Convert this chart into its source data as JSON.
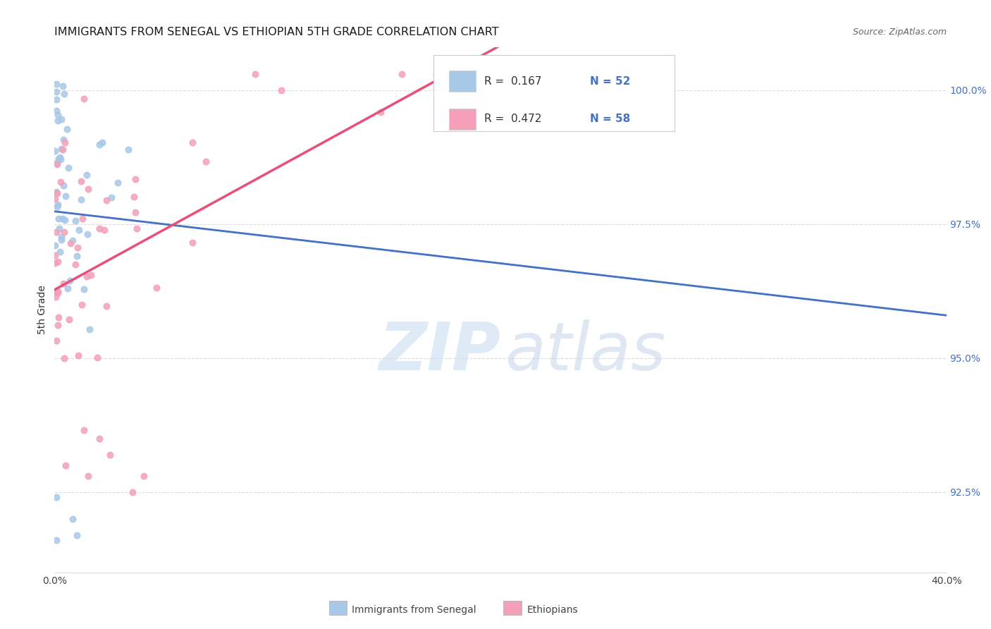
{
  "title": "IMMIGRANTS FROM SENEGAL VS ETHIOPIAN 5TH GRADE CORRELATION CHART",
  "source": "Source: ZipAtlas.com",
  "ylabel_label": "5th Grade",
  "ytick_labels": [
    "100.0%",
    "97.5%",
    "95.0%",
    "92.5%"
  ],
  "ytick_values": [
    1.0,
    0.975,
    0.95,
    0.925
  ],
  "xmin": 0.0,
  "xmax": 0.4,
  "ymin": 0.91,
  "ymax": 1.008,
  "r_senegal": 0.167,
  "r_ethiopian": 0.472,
  "n_senegal": 52,
  "n_ethiopian": 58,
  "color_senegal": "#a8c8e8",
  "color_ethiopian": "#f4a0b8",
  "trendline_senegal": "#4472c4",
  "trendline_ethiopian": "#e8507a",
  "trendline_dashed_color": "#aac4e0",
  "watermark_zip_color": "#c8ddf0",
  "watermark_atlas_color": "#b8cce4",
  "background_color": "#ffffff",
  "grid_color": "#dddddd",
  "scatter_size": 38,
  "legend_r1_label": "R =  0.167",
  "legend_n1_label": "N = 52",
  "legend_r2_label": "R =  0.472",
  "legend_n2_label": "N = 58"
}
